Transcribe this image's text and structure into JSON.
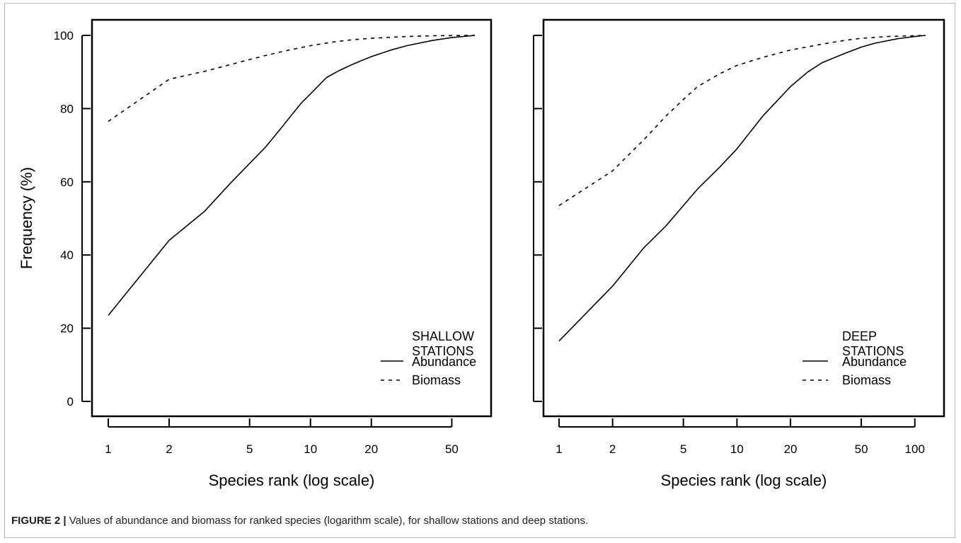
{
  "caption": {
    "label": "FIGURE 2 |",
    "text": " Values of abundance and biomass for ranked species (logarithm scale), for shallow stations and deep stations."
  },
  "chart_data": [
    {
      "type": "line",
      "xlabel": "Species rank (log scale)",
      "ylabel": "Frequency (%)",
      "x_scale": "log",
      "xlim": [
        1,
        65
      ],
      "ylim": [
        0,
        100
      ],
      "x_ticks": [
        1,
        2,
        5,
        10,
        20,
        50
      ],
      "y_ticks": [
        0,
        20,
        40,
        60,
        80,
        100
      ],
      "grid": false,
      "legend": {
        "placement": "bottom-right",
        "title_lines": [
          "SHALLOW",
          "STATIONS"
        ]
      },
      "series": [
        {
          "name": "Abundance",
          "style": "solid",
          "points": [
            [
              1,
              23.5
            ],
            [
              2,
              44
            ],
            [
              3,
              52
            ],
            [
              4,
              59.5
            ],
            [
              5,
              65
            ],
            [
              6,
              69.5
            ],
            [
              7,
              74
            ],
            [
              8,
              78
            ],
            [
              9,
              81.5
            ],
            [
              10,
              84
            ],
            [
              12,
              88.5
            ],
            [
              14,
              90.5
            ],
            [
              16,
              92
            ],
            [
              18,
              93.2
            ],
            [
              20,
              94.2
            ],
            [
              25,
              96
            ],
            [
              30,
              97.2
            ],
            [
              40,
              98.6
            ],
            [
              50,
              99.4
            ],
            [
              65,
              100
            ]
          ]
        },
        {
          "name": "Biomass",
          "style": "dashed",
          "points": [
            [
              1,
              76.5
            ],
            [
              2,
              88
            ],
            [
              3,
              90.2
            ],
            [
              4,
              92
            ],
            [
              5,
              93.4
            ],
            [
              6,
              94.5
            ],
            [
              7,
              95.4
            ],
            [
              8,
              96.1
            ],
            [
              10,
              97.2
            ],
            [
              13,
              98.2
            ],
            [
              16,
              98.8
            ],
            [
              20,
              99.2
            ],
            [
              25,
              99.5
            ],
            [
              30,
              99.7
            ],
            [
              40,
              99.9
            ],
            [
              65,
              100
            ]
          ]
        }
      ]
    },
    {
      "type": "line",
      "xlabel": "Species rank (log scale)",
      "ylabel": "",
      "x_scale": "log",
      "xlim": [
        1,
        115
      ],
      "ylim": [
        0,
        100
      ],
      "x_ticks": [
        1,
        2,
        5,
        10,
        20,
        50,
        100
      ],
      "y_ticks": [
        0,
        20,
        40,
        60,
        80,
        100
      ],
      "grid": false,
      "legend": {
        "placement": "bottom-right",
        "title_lines": [
          "DEEP",
          "STATIONS"
        ]
      },
      "series": [
        {
          "name": "Abundance",
          "style": "solid",
          "points": [
            [
              1,
              16.5
            ],
            [
              2,
              31.5
            ],
            [
              3,
              42
            ],
            [
              4,
              48
            ],
            [
              5,
              53.5
            ],
            [
              6,
              58
            ],
            [
              8,
              64
            ],
            [
              10,
              69
            ],
            [
              14,
              78
            ],
            [
              20,
              86
            ],
            [
              25,
              90
            ],
            [
              30,
              92.5
            ],
            [
              40,
              95
            ],
            [
              50,
              96.8
            ],
            [
              60,
              97.9
            ],
            [
              80,
              99.1
            ],
            [
              100,
              99.7
            ],
            [
              115,
              100
            ]
          ]
        },
        {
          "name": "Biomass",
          "style": "dashed",
          "points": [
            [
              1,
              53.5
            ],
            [
              2,
              63
            ],
            [
              3,
              71.5
            ],
            [
              4,
              78
            ],
            [
              5,
              82.5
            ],
            [
              6,
              86
            ],
            [
              8,
              89.5
            ],
            [
              10,
              91.8
            ],
            [
              14,
              94
            ],
            [
              20,
              96
            ],
            [
              30,
              97.6
            ],
            [
              40,
              98.6
            ],
            [
              50,
              99.2
            ],
            [
              70,
              99.7
            ],
            [
              100,
              99.9
            ],
            [
              115,
              100
            ]
          ]
        }
      ]
    }
  ]
}
